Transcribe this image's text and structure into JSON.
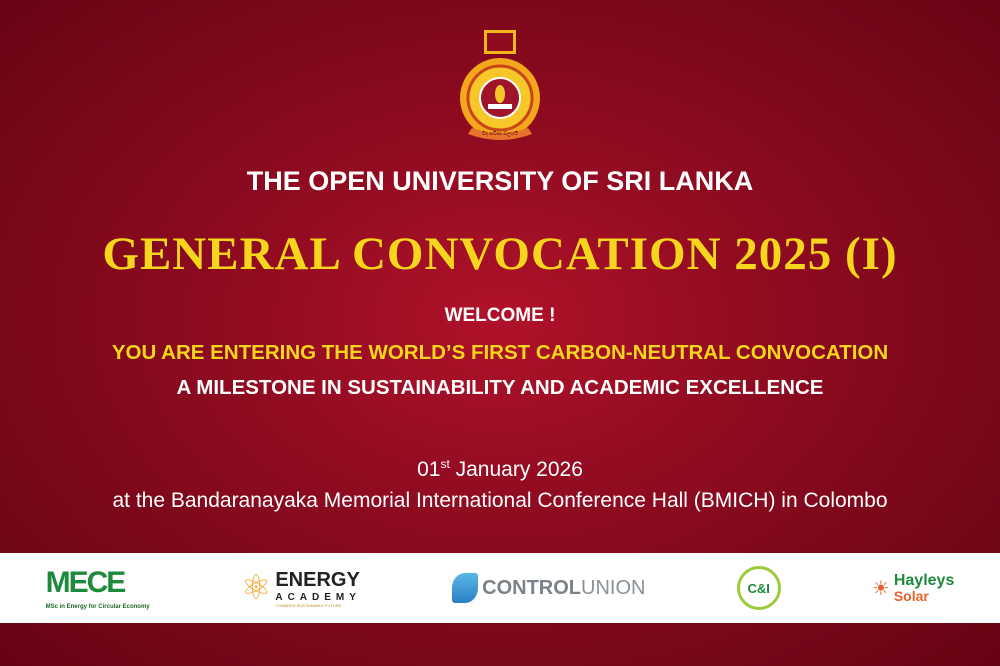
{
  "header": {
    "crest_motto": "විද සවිසා බලයයි",
    "university": "THE OPEN UNIVERSITY OF SRI LANKA",
    "event": "GENERAL CONVOCATION 2025 (I)"
  },
  "message": {
    "welcome": "WELCOME !",
    "tagline": "YOU ARE ENTERING THE WORLD’S FIRST CARBON-NEUTRAL CONVOCATION",
    "subtagline": "A MILESTONE IN SUSTAINABILITY AND ACADEMIC EXCELLENCE"
  },
  "details": {
    "date_day": "01",
    "date_suffix": "st",
    "date_rest": " January 2026",
    "venue": "at the Bandaranayaka Memorial International Conference Hall (BMICH) in Colombo"
  },
  "sponsors": [
    {
      "name": "MECE",
      "sub": "MSc in Energy for Circular Economy"
    },
    {
      "name": "ENERGY",
      "sub": "ACADEMY",
      "tag": "TOWARDS SUSTAINABLE FUTURE"
    },
    {
      "name": "CONTROL",
      "sub": "UNION"
    },
    {
      "name": "C&I"
    },
    {
      "name": "Hayleys",
      "sub": "Solar"
    }
  ],
  "colors": {
    "background": "#8e0b20",
    "accent": "#f5d61c"
  }
}
